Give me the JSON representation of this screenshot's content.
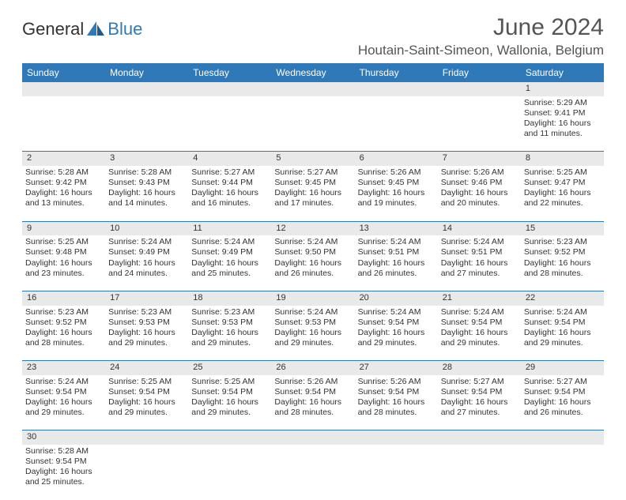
{
  "logo": {
    "general": "General",
    "blue": "Blue"
  },
  "title": "June 2024",
  "location": "Houtain-Saint-Simeon, Wallonia, Belgium",
  "colors": {
    "header_bg": "#2f79b9",
    "header_fg": "#ffffff",
    "daynum_bg": "#e9e9e9",
    "border": "#2f79b9",
    "text": "#333333",
    "title_text": "#555555"
  },
  "weekdays": [
    "Sunday",
    "Monday",
    "Tuesday",
    "Wednesday",
    "Thursday",
    "Friday",
    "Saturday"
  ],
  "weeks": [
    {
      "nums": [
        "",
        "",
        "",
        "",
        "",
        "",
        "1"
      ],
      "cells": [
        null,
        null,
        null,
        null,
        null,
        null,
        {
          "sunrise": "Sunrise: 5:29 AM",
          "sunset": "Sunset: 9:41 PM",
          "day1": "Daylight: 16 hours",
          "day2": "and 11 minutes."
        }
      ]
    },
    {
      "nums": [
        "2",
        "3",
        "4",
        "5",
        "6",
        "7",
        "8"
      ],
      "cells": [
        {
          "sunrise": "Sunrise: 5:28 AM",
          "sunset": "Sunset: 9:42 PM",
          "day1": "Daylight: 16 hours",
          "day2": "and 13 minutes."
        },
        {
          "sunrise": "Sunrise: 5:28 AM",
          "sunset": "Sunset: 9:43 PM",
          "day1": "Daylight: 16 hours",
          "day2": "and 14 minutes."
        },
        {
          "sunrise": "Sunrise: 5:27 AM",
          "sunset": "Sunset: 9:44 PM",
          "day1": "Daylight: 16 hours",
          "day2": "and 16 minutes."
        },
        {
          "sunrise": "Sunrise: 5:27 AM",
          "sunset": "Sunset: 9:45 PM",
          "day1": "Daylight: 16 hours",
          "day2": "and 17 minutes."
        },
        {
          "sunrise": "Sunrise: 5:26 AM",
          "sunset": "Sunset: 9:45 PM",
          "day1": "Daylight: 16 hours",
          "day2": "and 19 minutes."
        },
        {
          "sunrise": "Sunrise: 5:26 AM",
          "sunset": "Sunset: 9:46 PM",
          "day1": "Daylight: 16 hours",
          "day2": "and 20 minutes."
        },
        {
          "sunrise": "Sunrise: 5:25 AM",
          "sunset": "Sunset: 9:47 PM",
          "day1": "Daylight: 16 hours",
          "day2": "and 22 minutes."
        }
      ]
    },
    {
      "nums": [
        "9",
        "10",
        "11",
        "12",
        "13",
        "14",
        "15"
      ],
      "cells": [
        {
          "sunrise": "Sunrise: 5:25 AM",
          "sunset": "Sunset: 9:48 PM",
          "day1": "Daylight: 16 hours",
          "day2": "and 23 minutes."
        },
        {
          "sunrise": "Sunrise: 5:24 AM",
          "sunset": "Sunset: 9:49 PM",
          "day1": "Daylight: 16 hours",
          "day2": "and 24 minutes."
        },
        {
          "sunrise": "Sunrise: 5:24 AM",
          "sunset": "Sunset: 9:49 PM",
          "day1": "Daylight: 16 hours",
          "day2": "and 25 minutes."
        },
        {
          "sunrise": "Sunrise: 5:24 AM",
          "sunset": "Sunset: 9:50 PM",
          "day1": "Daylight: 16 hours",
          "day2": "and 26 minutes."
        },
        {
          "sunrise": "Sunrise: 5:24 AM",
          "sunset": "Sunset: 9:51 PM",
          "day1": "Daylight: 16 hours",
          "day2": "and 26 minutes."
        },
        {
          "sunrise": "Sunrise: 5:24 AM",
          "sunset": "Sunset: 9:51 PM",
          "day1": "Daylight: 16 hours",
          "day2": "and 27 minutes."
        },
        {
          "sunrise": "Sunrise: 5:23 AM",
          "sunset": "Sunset: 9:52 PM",
          "day1": "Daylight: 16 hours",
          "day2": "and 28 minutes."
        }
      ]
    },
    {
      "nums": [
        "16",
        "17",
        "18",
        "19",
        "20",
        "21",
        "22"
      ],
      "cells": [
        {
          "sunrise": "Sunrise: 5:23 AM",
          "sunset": "Sunset: 9:52 PM",
          "day1": "Daylight: 16 hours",
          "day2": "and 28 minutes."
        },
        {
          "sunrise": "Sunrise: 5:23 AM",
          "sunset": "Sunset: 9:53 PM",
          "day1": "Daylight: 16 hours",
          "day2": "and 29 minutes."
        },
        {
          "sunrise": "Sunrise: 5:23 AM",
          "sunset": "Sunset: 9:53 PM",
          "day1": "Daylight: 16 hours",
          "day2": "and 29 minutes."
        },
        {
          "sunrise": "Sunrise: 5:24 AM",
          "sunset": "Sunset: 9:53 PM",
          "day1": "Daylight: 16 hours",
          "day2": "and 29 minutes."
        },
        {
          "sunrise": "Sunrise: 5:24 AM",
          "sunset": "Sunset: 9:54 PM",
          "day1": "Daylight: 16 hours",
          "day2": "and 29 minutes."
        },
        {
          "sunrise": "Sunrise: 5:24 AM",
          "sunset": "Sunset: 9:54 PM",
          "day1": "Daylight: 16 hours",
          "day2": "and 29 minutes."
        },
        {
          "sunrise": "Sunrise: 5:24 AM",
          "sunset": "Sunset: 9:54 PM",
          "day1": "Daylight: 16 hours",
          "day2": "and 29 minutes."
        }
      ]
    },
    {
      "nums": [
        "23",
        "24",
        "25",
        "26",
        "27",
        "28",
        "29"
      ],
      "cells": [
        {
          "sunrise": "Sunrise: 5:24 AM",
          "sunset": "Sunset: 9:54 PM",
          "day1": "Daylight: 16 hours",
          "day2": "and 29 minutes."
        },
        {
          "sunrise": "Sunrise: 5:25 AM",
          "sunset": "Sunset: 9:54 PM",
          "day1": "Daylight: 16 hours",
          "day2": "and 29 minutes."
        },
        {
          "sunrise": "Sunrise: 5:25 AM",
          "sunset": "Sunset: 9:54 PM",
          "day1": "Daylight: 16 hours",
          "day2": "and 29 minutes."
        },
        {
          "sunrise": "Sunrise: 5:26 AM",
          "sunset": "Sunset: 9:54 PM",
          "day1": "Daylight: 16 hours",
          "day2": "and 28 minutes."
        },
        {
          "sunrise": "Sunrise: 5:26 AM",
          "sunset": "Sunset: 9:54 PM",
          "day1": "Daylight: 16 hours",
          "day2": "and 28 minutes."
        },
        {
          "sunrise": "Sunrise: 5:27 AM",
          "sunset": "Sunset: 9:54 PM",
          "day1": "Daylight: 16 hours",
          "day2": "and 27 minutes."
        },
        {
          "sunrise": "Sunrise: 5:27 AM",
          "sunset": "Sunset: 9:54 PM",
          "day1": "Daylight: 16 hours",
          "day2": "and 26 minutes."
        }
      ]
    },
    {
      "nums": [
        "30",
        "",
        "",
        "",
        "",
        "",
        ""
      ],
      "cells": [
        {
          "sunrise": "Sunrise: 5:28 AM",
          "sunset": "Sunset: 9:54 PM",
          "day1": "Daylight: 16 hours",
          "day2": "and 25 minutes."
        },
        null,
        null,
        null,
        null,
        null,
        null
      ]
    }
  ]
}
